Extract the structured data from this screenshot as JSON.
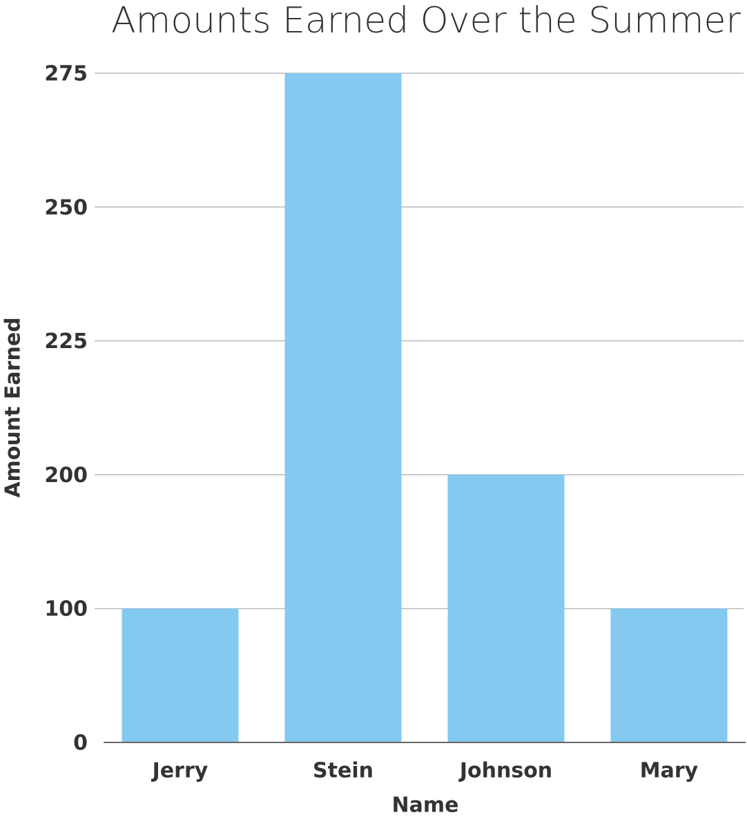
{
  "chart_data": {
    "type": "bar",
    "title": "Amounts Earned Over the Summer",
    "x_label": "Name",
    "y_label": "Amount Earned",
    "categories": [
      "Jerry",
      "Stein",
      "Johnson",
      "Mary"
    ],
    "values": [
      100,
      275,
      200,
      100
    ],
    "color": "#83c9f0",
    "ylim": [
      0,
      275
    ],
    "yticks": [
      0,
      100,
      200,
      225,
      250,
      275
    ],
    "grid": true
  }
}
